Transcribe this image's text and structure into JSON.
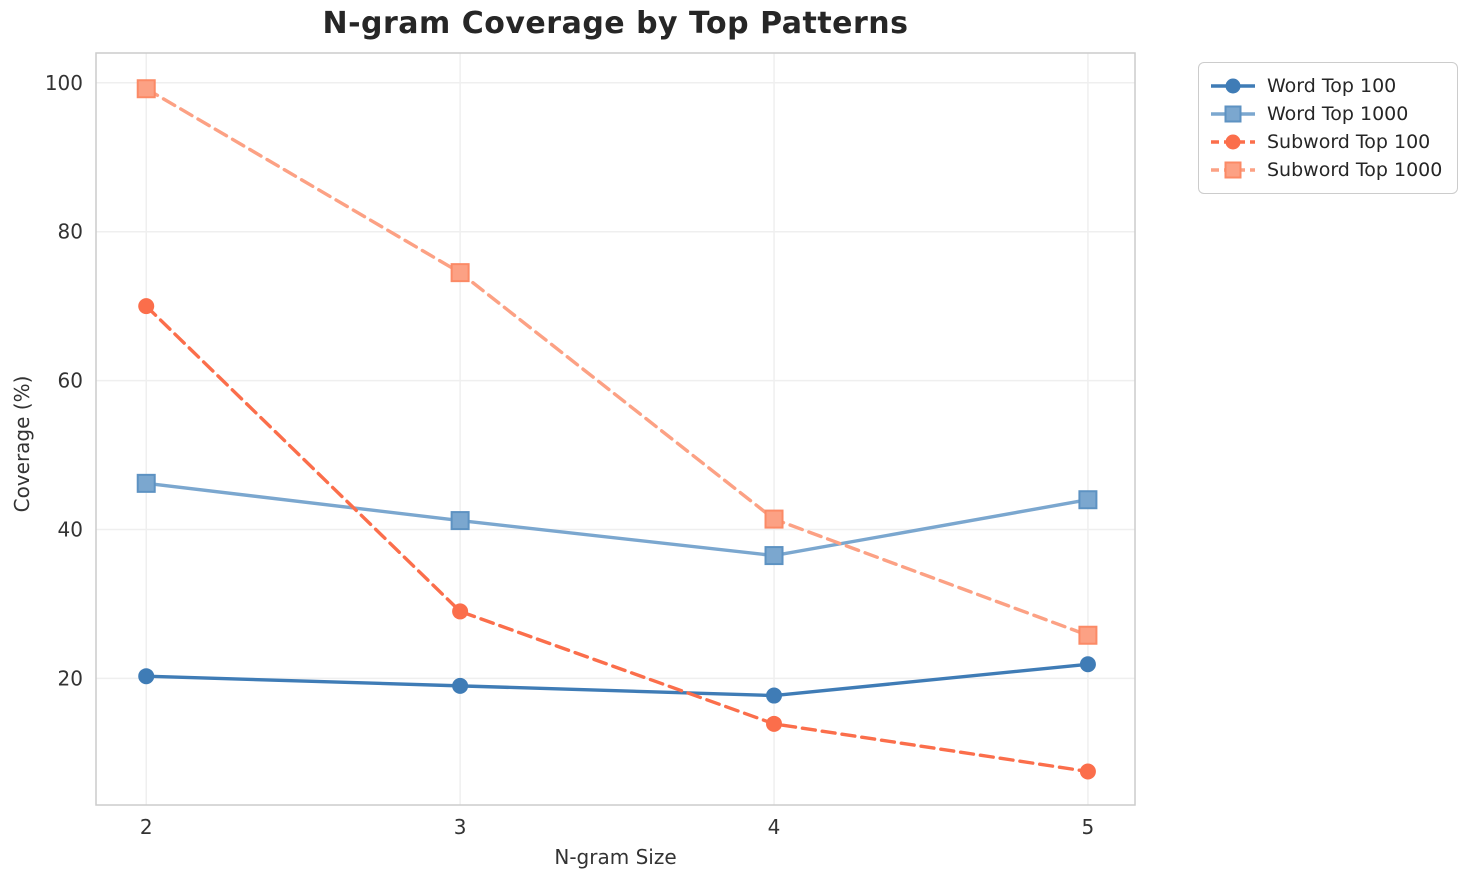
{
  "chart_data": {
    "type": "line",
    "title": "N-gram Coverage by Top Patterns",
    "xlabel": "N-gram Size",
    "ylabel": "Coverage (%)",
    "x": [
      2,
      3,
      4,
      5
    ],
    "xticks": [
      2,
      3,
      4,
      5
    ],
    "yticks": [
      20,
      40,
      60,
      80,
      100
    ],
    "xlim": [
      1.84,
      5.15
    ],
    "ylim": [
      3,
      104
    ],
    "grid": true,
    "legend_position": "outside upper right",
    "series": [
      {
        "name": "Word Top 100",
        "values": [
          20.3,
          19.0,
          17.7,
          21.9
        ],
        "color": "#3f7cb6",
        "marker": "circle",
        "linestyle": "solid"
      },
      {
        "name": "Word Top 1000",
        "values": [
          46.2,
          41.2,
          36.5,
          44.0
        ],
        "color": "#7ba7cf",
        "marker": "square",
        "marker_edge": "#5d92c2",
        "linestyle": "solid"
      },
      {
        "name": "Subword Top 100",
        "values": [
          70.0,
          29.0,
          13.9,
          7.5
        ],
        "color": "#fb6e4b",
        "marker": "circle",
        "linestyle": "dashed"
      },
      {
        "name": "Subword Top 1000",
        "values": [
          99.2,
          74.5,
          41.4,
          25.8
        ],
        "color": "#fca184",
        "marker": "square",
        "marker_edge": "#fb8a66",
        "linestyle": "dashed"
      }
    ],
    "style": {
      "grid_color": "#efefef",
      "spine_color": "#cccccc",
      "tick_color": "#333333",
      "title_color": "#262626",
      "background": "#ffffff"
    }
  }
}
